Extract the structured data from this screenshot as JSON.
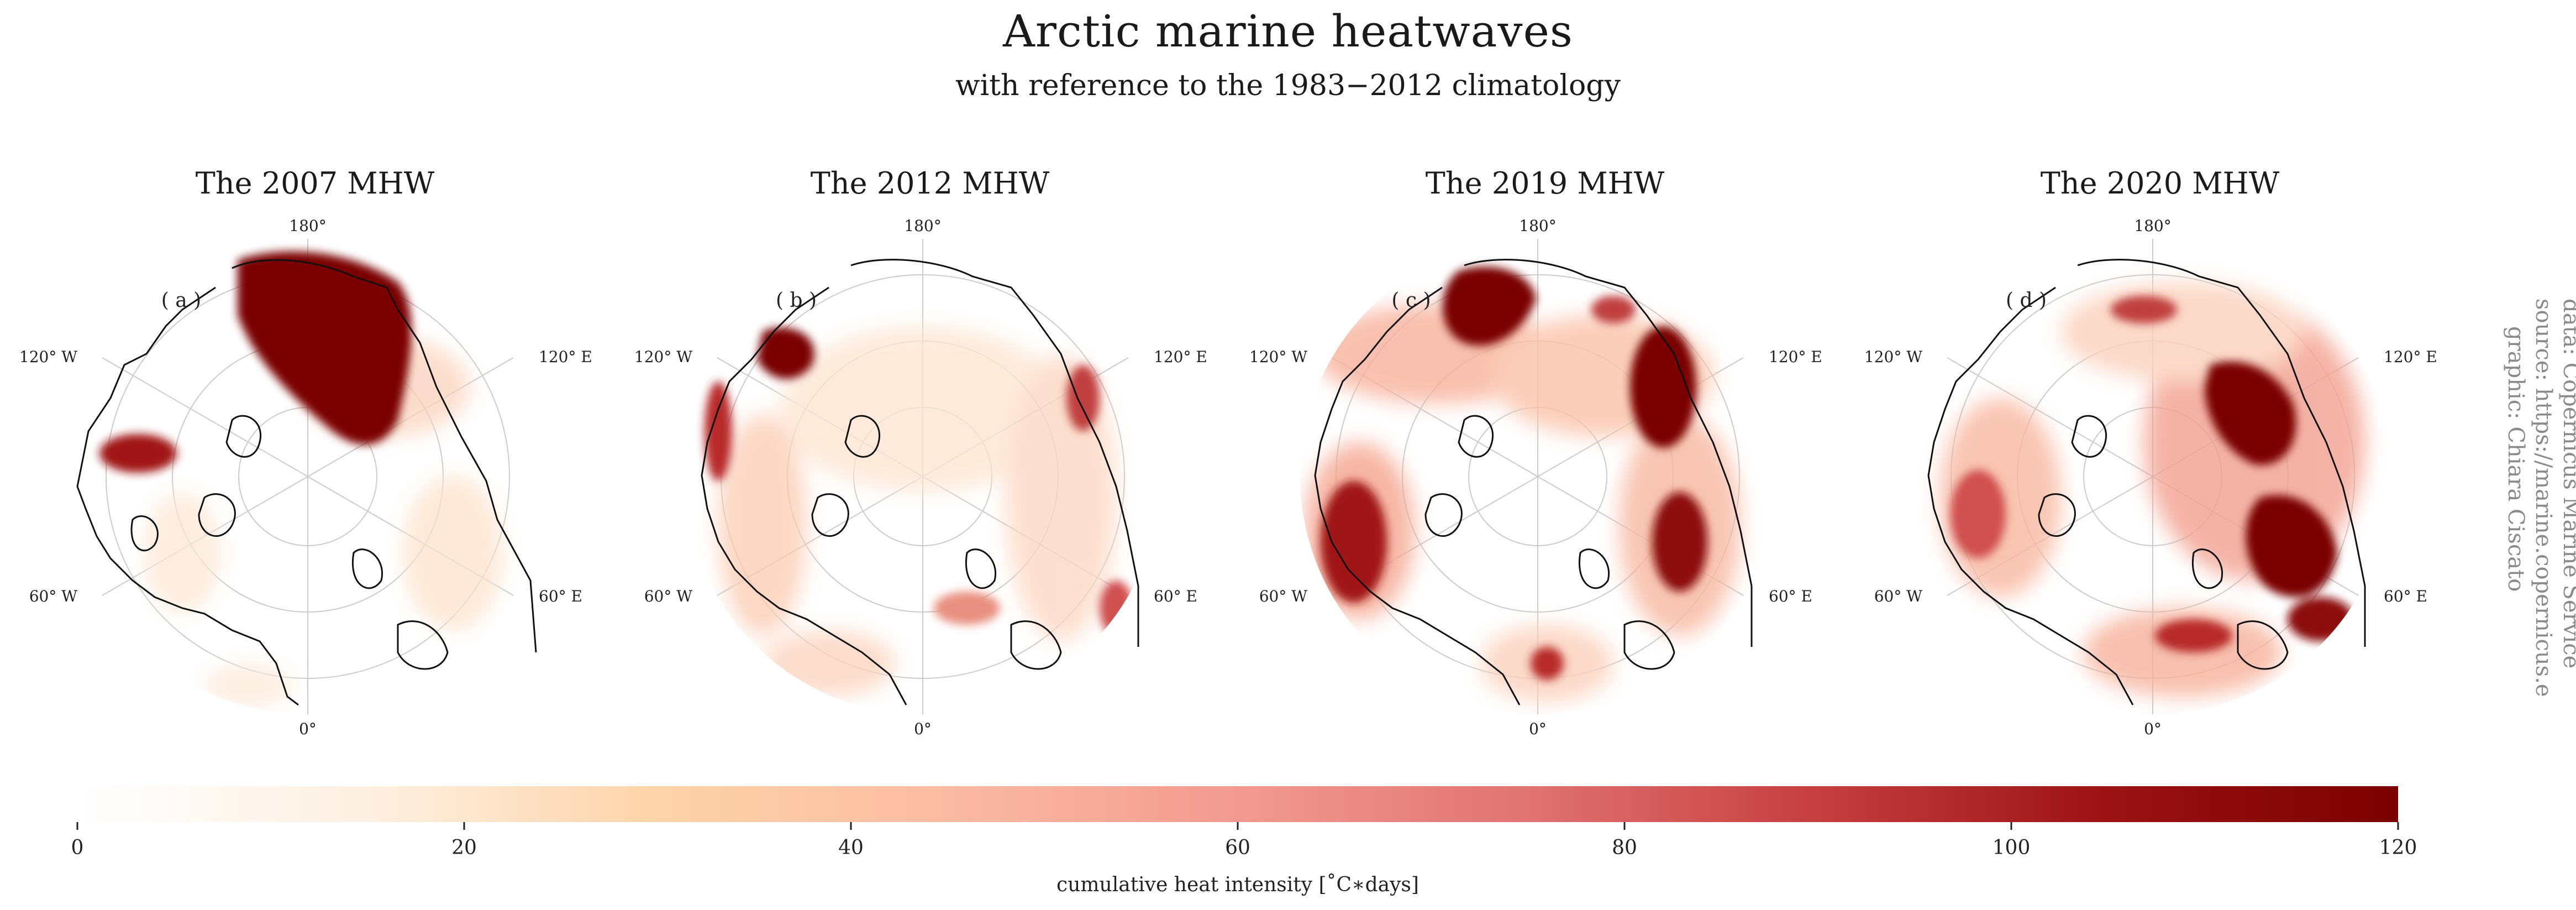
{
  "title": "Arctic marine heatwaves",
  "subtitle": "with reference to the 1983−2012 climatology",
  "panels": [
    {
      "title": "The 2007 MHW",
      "letter": "( a )"
    },
    {
      "title": "The 2012 MHW",
      "letter": "( b )"
    },
    {
      "title": "The 2019 MHW",
      "letter": "( c )"
    },
    {
      "title": "The 2020 MHW",
      "letter": "( d )"
    }
  ],
  "longitude_labels": {
    "north": "180°",
    "south": "0°",
    "upper_left": "120° W",
    "upper_right": "120° E",
    "lower_left": "60° W",
    "lower_right": "60° E"
  },
  "colorbar": {
    "label": "cumulative heat intensity [˚C∗days]",
    "min": 0,
    "max": 120,
    "ticks": [
      "0",
      "20",
      "40",
      "60",
      "80",
      "100",
      "120"
    ],
    "colormap": "OrRd",
    "colors": [
      "#ffffff",
      "#fee8d3",
      "#fdd4a9",
      "#f9b09b",
      "#ef8a80",
      "#d75a5a",
      "#b82a2a",
      "#8c0a0a",
      "#7a0000"
    ]
  },
  "credits": [
    "data: Copernicus Marine Service",
    "source: https://marine.copernicus.eu/",
    "graphic: Chiara Ciscato"
  ]
}
